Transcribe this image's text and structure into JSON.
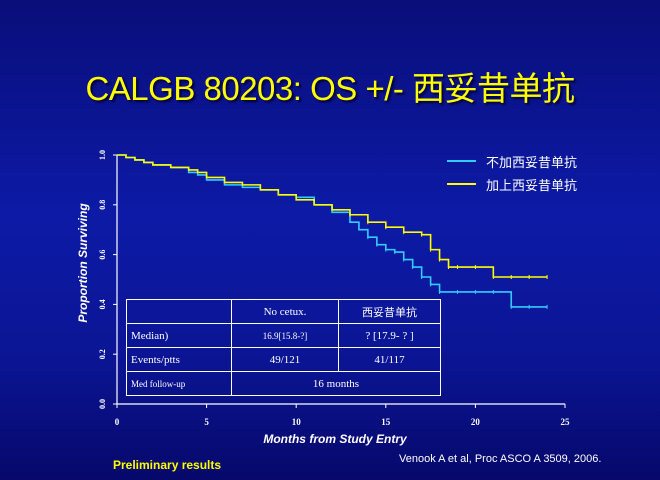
{
  "title": "CALGB 80203: OS +/- 西妥昔单抗",
  "chart_data": {
    "type": "line",
    "xlabel": "Months from Study Entry",
    "ylabel": "Proportion Surviving",
    "xlim": [
      0,
      25
    ],
    "ylim": [
      0,
      1.0
    ],
    "x_ticks": [
      "0",
      "5",
      "10",
      "15",
      "20",
      "25"
    ],
    "y_ticks": [
      "0.0",
      "0.2",
      "0.4",
      "0.6",
      "0.8",
      "1.0"
    ],
    "legend_position": "top-right",
    "series": [
      {
        "name": "不加西妥昔单抗",
        "color": "#33ccff",
        "x": [
          0,
          0.5,
          1,
          1.5,
          2,
          3,
          4,
          4.5,
          5,
          6,
          7,
          8,
          9,
          10,
          11,
          12,
          13,
          13.5,
          14,
          14.5,
          15,
          15.5,
          16,
          16.5,
          17,
          17.5,
          18,
          19,
          20,
          21,
          22,
          23,
          24
        ],
        "y": [
          1.0,
          0.99,
          0.98,
          0.97,
          0.96,
          0.95,
          0.93,
          0.92,
          0.9,
          0.88,
          0.87,
          0.86,
          0.84,
          0.83,
          0.8,
          0.77,
          0.73,
          0.7,
          0.67,
          0.64,
          0.62,
          0.61,
          0.58,
          0.55,
          0.51,
          0.48,
          0.45,
          0.45,
          0.45,
          0.45,
          0.39,
          0.39,
          0.39
        ]
      },
      {
        "name": "加上西妥昔单抗",
        "color": "#ffff00",
        "x": [
          0,
          0.5,
          1,
          1.5,
          2,
          3,
          4,
          4.5,
          5,
          6,
          7,
          8,
          9,
          10,
          11,
          12,
          13,
          14,
          15,
          16,
          17,
          17.5,
          18,
          18.5,
          19,
          20,
          21,
          22,
          23,
          24
        ],
        "y": [
          1.0,
          0.99,
          0.98,
          0.97,
          0.96,
          0.95,
          0.94,
          0.93,
          0.91,
          0.89,
          0.88,
          0.86,
          0.84,
          0.82,
          0.8,
          0.78,
          0.76,
          0.73,
          0.71,
          0.69,
          0.68,
          0.62,
          0.58,
          0.55,
          0.55,
          0.55,
          0.51,
          0.51,
          0.51,
          0.51
        ]
      }
    ]
  },
  "stats_table": {
    "header": [
      "",
      "No cetux.",
      "西妥昔单抗"
    ],
    "rows": [
      [
        "Median)",
        "16.9[15.8-?]",
        "?  [17.9- ? ]"
      ],
      [
        "Events/ptts",
        "49/121",
        "41/117"
      ],
      [
        "Med follow-up",
        "16 months"
      ]
    ]
  },
  "footer": {
    "preliminary": "Preliminary results",
    "citation": "Venook A et al, Proc ASCO  A 3509, 2006."
  }
}
